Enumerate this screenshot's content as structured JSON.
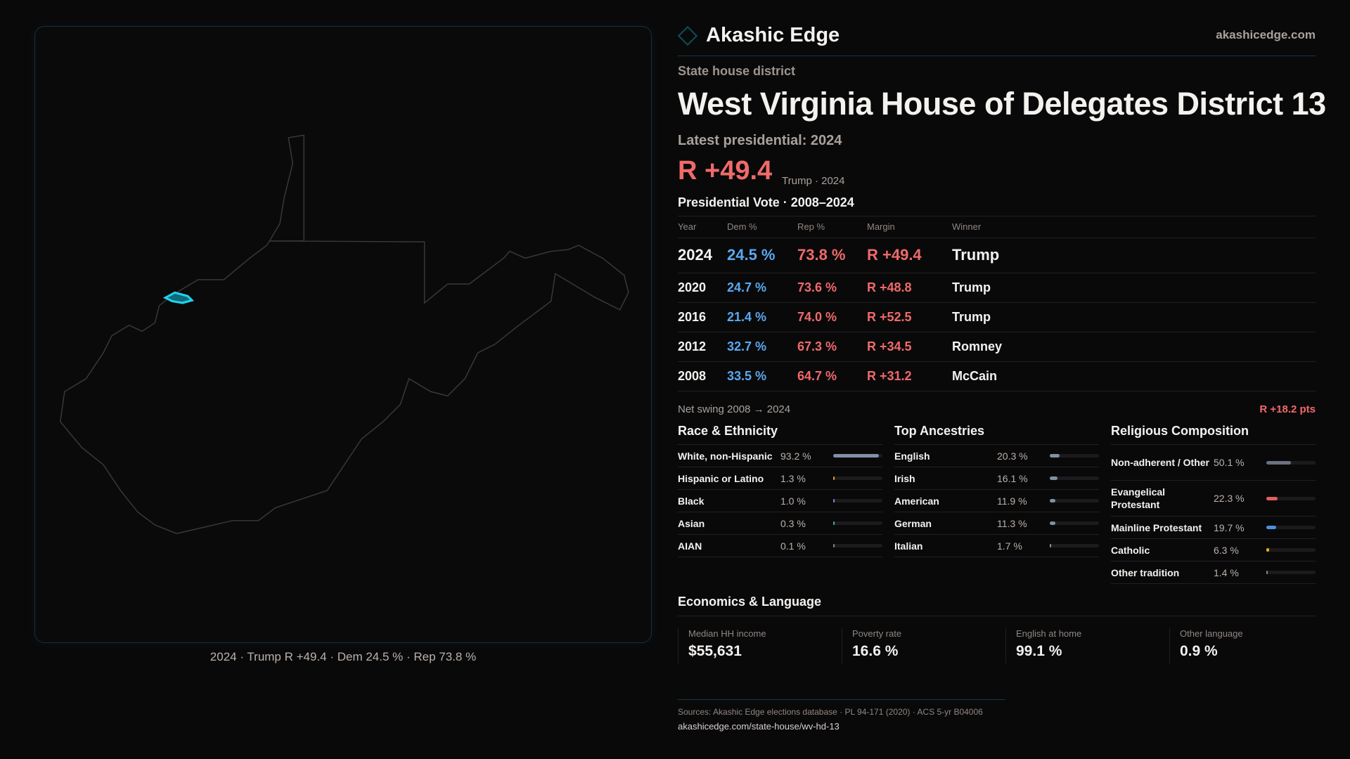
{
  "brand": {
    "name": "Akashic Edge",
    "site": "akashicedge.com"
  },
  "kicker": "State house district",
  "title": "West Virginia House of Delegates District 13",
  "latest": {
    "label": "Latest presidential: 2024",
    "margin": "R +49.4",
    "sub": "Trump · 2024"
  },
  "map": {
    "caption": "2024 · Trump R +49.4 · Dem 24.5 % · Rep 73.8 %",
    "highlight_color": "#22d3ee"
  },
  "vote": {
    "title": "Presidential Vote · 2008–2024",
    "headers": [
      "Year",
      "Dem %",
      "Rep %",
      "Margin",
      "Winner"
    ],
    "rows": [
      {
        "year": "2024",
        "dem": "24.5 %",
        "rep": "73.8 %",
        "margin": "R +49.4",
        "winner": "Trump"
      },
      {
        "year": "2020",
        "dem": "24.7 %",
        "rep": "73.6 %",
        "margin": "R +48.8",
        "winner": "Trump"
      },
      {
        "year": "2016",
        "dem": "21.4 %",
        "rep": "74.0 %",
        "margin": "R +52.5",
        "winner": "Trump"
      },
      {
        "year": "2012",
        "dem": "32.7 %",
        "rep": "67.3 %",
        "margin": "R +34.5",
        "winner": "Romney"
      },
      {
        "year": "2008",
        "dem": "33.5 %",
        "rep": "64.7 %",
        "margin": "R +31.2",
        "winner": "McCain"
      }
    ],
    "swing_label": "Net swing 2008 → 2024",
    "swing_value": "R +18.2 pts"
  },
  "race": {
    "title": "Race & Ethnicity",
    "items": [
      {
        "label": "White, non-Hispanic",
        "value": "93.2 %",
        "pct": 93.2,
        "color": "#8190a5"
      },
      {
        "label": "Hispanic or Latino",
        "value": "1.3 %",
        "pct": 1.3,
        "color": "#e0a030"
      },
      {
        "label": "Black",
        "value": "1.0 %",
        "pct": 1.0,
        "color": "#8a7fe0"
      },
      {
        "label": "Asian",
        "value": "0.3 %",
        "pct": 0.3,
        "color": "#3bb8a0"
      },
      {
        "label": "AIAN",
        "value": "0.1 %",
        "pct": 0.1,
        "color": "#888"
      }
    ]
  },
  "ancestry": {
    "title": "Top Ancestries",
    "items": [
      {
        "label": "English",
        "value": "20.3 %",
        "pct": 20.3,
        "color": "#8190a5"
      },
      {
        "label": "Irish",
        "value": "16.1 %",
        "pct": 16.1,
        "color": "#8190a5"
      },
      {
        "label": "American",
        "value": "11.9 %",
        "pct": 11.9,
        "color": "#8190a5"
      },
      {
        "label": "German",
        "value": "11.3 %",
        "pct": 11.3,
        "color": "#8190a5"
      },
      {
        "label": "Italian",
        "value": "1.7 %",
        "pct": 1.7,
        "color": "#8190a5"
      }
    ]
  },
  "religion": {
    "title": "Religious Composition",
    "items": [
      {
        "label": "Non-adherent / Other",
        "value": "50.1 %",
        "pct": 50.1,
        "color": "#6b7180"
      },
      {
        "label": "Evangelical Protestant",
        "value": "22.3 %",
        "pct": 22.3,
        "color": "#e06060"
      },
      {
        "label": "Mainline Protestant",
        "value": "19.7 %",
        "pct": 19.7,
        "color": "#4a90e0"
      },
      {
        "label": "Catholic",
        "value": "6.3 %",
        "pct": 6.3,
        "color": "#e0b020"
      },
      {
        "label": "Other tradition",
        "value": "1.4 %",
        "pct": 1.4,
        "color": "#888"
      }
    ]
  },
  "econ": {
    "title": "Economics & Language",
    "cards": [
      {
        "label": "Median HH income",
        "value": "$55,631"
      },
      {
        "label": "Poverty rate",
        "value": "16.6 %"
      },
      {
        "label": "English at home",
        "value": "99.1 %"
      },
      {
        "label": "Other language",
        "value": "0.9 %"
      }
    ]
  },
  "footer": {
    "sources": "Sources: Akashic Edge elections database · PL 94-171 (2020) · ACS 5-yr B04006",
    "url": "akashicedge.com/state-house/wv-hd-13"
  }
}
